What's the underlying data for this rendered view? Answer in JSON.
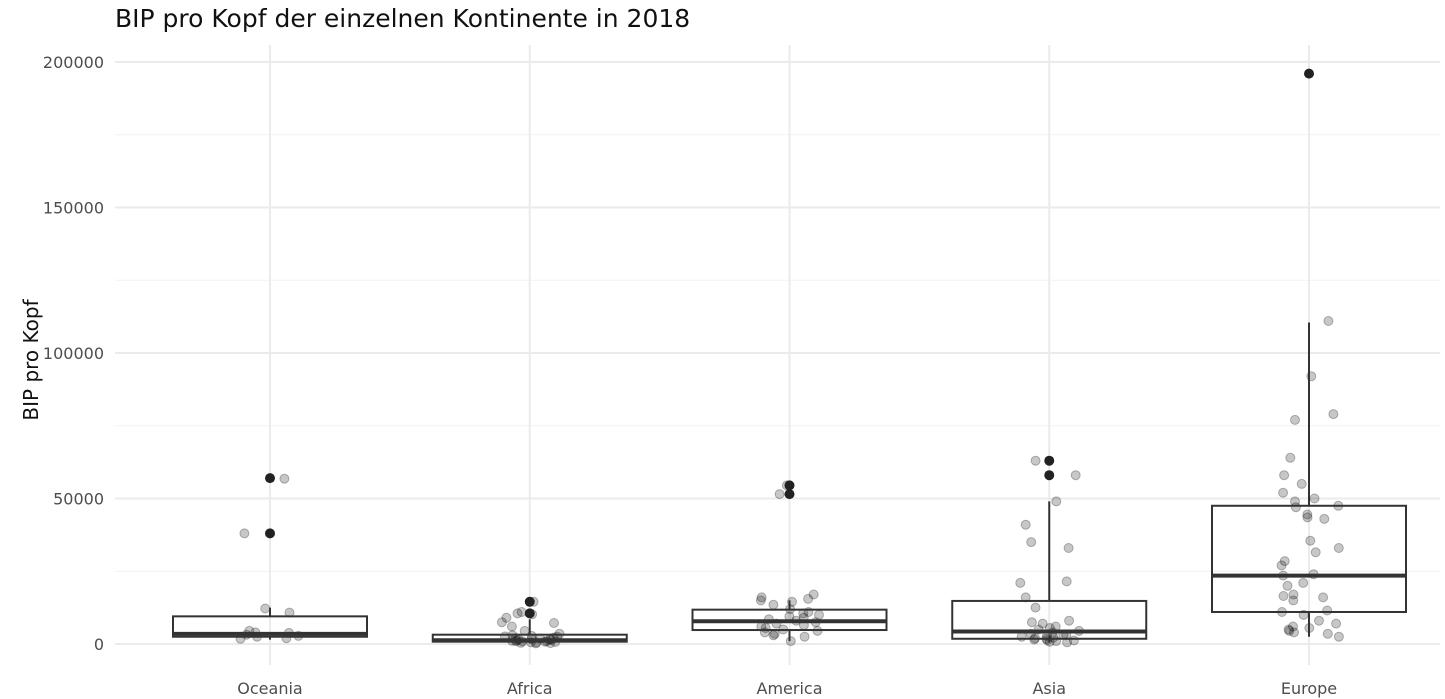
{
  "chart_data": {
    "type": "box",
    "title": "BIP pro Kopf der einzelnen Kontinente in 2018",
    "xlabel": "",
    "ylabel": "BIP pro Kopf",
    "ylim": [
      -10000,
      205000
    ],
    "yticks": [
      0,
      50000,
      100000,
      150000,
      200000
    ],
    "ytick_labels": [
      "0",
      "50000",
      "100000",
      "150000",
      "200000"
    ],
    "grid": true,
    "categories": [
      "Oceania",
      "Africa",
      "America",
      "Asia",
      "Europe"
    ],
    "boxes": [
      {
        "category": "Oceania",
        "min": 1500,
        "q1": 2500,
        "median": 3500,
        "q3": 9500,
        "max": 12500
      },
      {
        "category": "Africa",
        "min": 200,
        "q1": 800,
        "median": 1300,
        "q3": 3200,
        "max": 8500
      },
      {
        "category": "America",
        "min": 1000,
        "q1": 4800,
        "median": 7800,
        "q3": 11800,
        "max": 15000
      },
      {
        "category": "Asia",
        "min": 500,
        "q1": 1800,
        "median": 4300,
        "q3": 14800,
        "max": 49000
      },
      {
        "category": "Europe",
        "min": 2500,
        "q1": 11000,
        "median": 23500,
        "q3": 47500,
        "max": 110500
      }
    ],
    "outliers": [
      {
        "category": "Oceania",
        "values": [
          57000,
          38000
        ]
      },
      {
        "category": "Africa",
        "values": [
          14500,
          10500
        ]
      },
      {
        "category": "America",
        "values": [
          54500,
          51500
        ]
      },
      {
        "category": "Asia",
        "values": [
          63000,
          58000
        ]
      },
      {
        "category": "Europe",
        "values": [
          196000
        ]
      }
    ],
    "points": [
      {
        "category": "Oceania",
        "values": [
          56800,
          38000,
          12200,
          10800,
          4500,
          3800,
          3200,
          2800,
          2500,
          2000,
          1800,
          4000
        ]
      },
      {
        "category": "Africa",
        "values": [
          14500,
          11000,
          10500,
          10200,
          9000,
          7500,
          7200,
          6000,
          4500,
          3500,
          3000,
          2800,
          2500,
          2200,
          2000,
          1800,
          1600,
          1500,
          1400,
          1200,
          1000,
          900,
          800,
          700,
          600,
          500,
          400,
          300,
          200,
          2600,
          1900,
          1100,
          950
        ]
      },
      {
        "category": "America",
        "values": [
          54500,
          51500,
          17000,
          16000,
          15500,
          15000,
          14500,
          13500,
          12000,
          11000,
          10500,
          10000,
          9500,
          9000,
          8500,
          8000,
          7500,
          7000,
          6500,
          6000,
          5500,
          5000,
          4500,
          4000,
          3500,
          3000,
          2500,
          1000
        ]
      },
      {
        "category": "Asia",
        "values": [
          63000,
          58000,
          49000,
          41000,
          35000,
          33000,
          21500,
          21000,
          16000,
          12500,
          8000,
          7500,
          7000,
          6000,
          5500,
          5000,
          4500,
          4000,
          3500,
          3000,
          2800,
          2500,
          2000,
          1800,
          1500,
          1200,
          1000,
          800,
          600,
          1300,
          2200,
          3200
        ]
      },
      {
        "category": "Europe",
        "values": [
          111000,
          92000,
          79000,
          77000,
          64000,
          58000,
          55000,
          52000,
          50000,
          49000,
          47500,
          47000,
          44500,
          43500,
          43000,
          35500,
          33000,
          31500,
          28500,
          27000,
          24000,
          23500,
          21000,
          20000,
          17000,
          16500,
          16000,
          15000,
          11500,
          11000,
          10000,
          8000,
          7000,
          6000,
          5500,
          5000,
          4500,
          4000,
          3500,
          2500
        ]
      }
    ]
  }
}
